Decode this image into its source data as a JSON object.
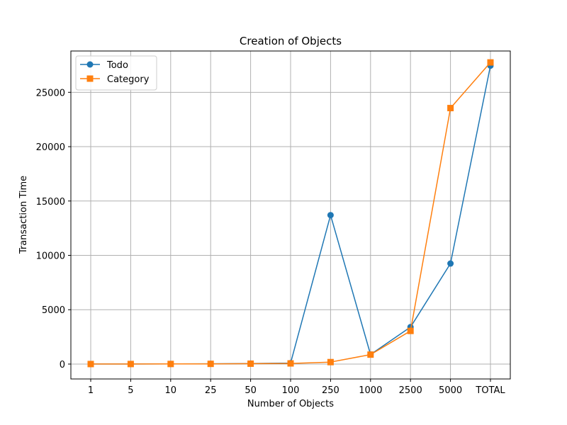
{
  "chart_data": {
    "type": "line",
    "title": "Creation of Objects",
    "xlabel": "Number of Objects",
    "ylabel": "Transaction Time",
    "categories": [
      "1",
      "5",
      "10",
      "25",
      "50",
      "100",
      "250",
      "1000",
      "2500",
      "5000",
      "TOTAL"
    ],
    "ylim": [
      -1370,
      28800
    ],
    "yticks": [
      0,
      5000,
      10000,
      15000,
      20000,
      25000
    ],
    "grid": true,
    "legend": "top-left",
    "series": [
      {
        "name": "Todo",
        "color": "#1f77b4",
        "marker": "circle",
        "values": [
          5,
          8,
          12,
          25,
          50,
          90,
          13700,
          880,
          3400,
          9250,
          27450
        ]
      },
      {
        "name": "Category",
        "color": "#ff7f0e",
        "marker": "square",
        "values": [
          3,
          6,
          10,
          20,
          35,
          60,
          180,
          870,
          3050,
          23550,
          27750
        ]
      }
    ]
  }
}
